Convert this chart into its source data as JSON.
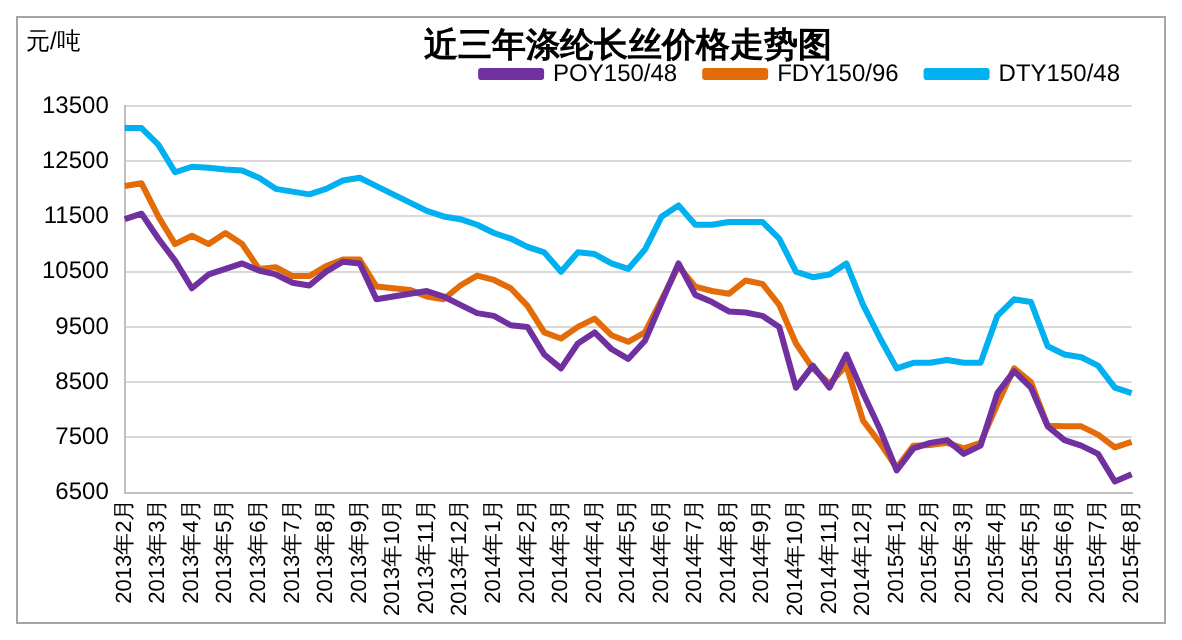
{
  "chart_data": {
    "type": "line",
    "title": "近三年涤纶长丝价格走势图",
    "ylabel": "元/吨",
    "categories": [
      "2013年2月",
      null,
      "2013年3月",
      null,
      "2013年4月",
      null,
      "2013年5月",
      null,
      "2013年6月",
      null,
      "2013年7月",
      null,
      "2013年8月",
      null,
      "2013年9月",
      null,
      "2013年10月",
      null,
      "2013年11月",
      null,
      "2013年12月",
      null,
      "2014年1月",
      null,
      "2014年2月",
      null,
      "2014年3月",
      null,
      "2014年4月",
      null,
      "2014年5月",
      null,
      "2014年6月",
      null,
      "2014年7月",
      null,
      "2014年8月",
      null,
      "2014年9月",
      null,
      "2014年10月",
      null,
      "2014年11月",
      null,
      "2014年12月",
      null,
      "2015年1月",
      null,
      "2015年2月",
      null,
      "2015年3月",
      null,
      "2015年4月",
      null,
      "2015年5月",
      null,
      "2015年6月",
      null,
      "2015年7月",
      null,
      "2015年8月"
    ],
    "series": [
      {
        "name": "POY150/48",
        "color": "#7030a0",
        "values": [
          11450,
          11550,
          11100,
          10700,
          10200,
          10450,
          10550,
          10650,
          10520,
          10450,
          10300,
          10250,
          10500,
          10680,
          10650,
          10000,
          10050,
          10100,
          10150,
          10050,
          9900,
          9750,
          9700,
          9530,
          9500,
          9000,
          8750,
          9200,
          9400,
          9100,
          8920,
          9250,
          9950,
          10650,
          10080,
          9950,
          9780,
          9760,
          9700,
          9500,
          8400,
          8800,
          8400,
          9000,
          8300,
          7650,
          6900,
          7300,
          7400,
          7450,
          7200,
          7350,
          8300,
          8700,
          8400,
          7700,
          7450,
          7350,
          7200,
          6700,
          6830
        ]
      },
      {
        "name": "FDY150/96",
        "color": "#e36c09",
        "values": [
          12050,
          12100,
          11500,
          11000,
          11150,
          11000,
          11200,
          11000,
          10550,
          10580,
          10420,
          10420,
          10600,
          10720,
          10720,
          10230,
          10200,
          10170,
          10050,
          10000,
          10250,
          10430,
          10350,
          10200,
          9880,
          9400,
          9290,
          9500,
          9650,
          9350,
          9230,
          9400,
          10000,
          10600,
          10230,
          10150,
          10100,
          10340,
          10280,
          9900,
          9200,
          8750,
          8470,
          8800,
          7800,
          7400,
          6950,
          7350,
          7360,
          7400,
          7300,
          7400,
          8100,
          8750,
          8500,
          7710,
          7700,
          7700,
          7550,
          7320,
          7420
        ]
      },
      {
        "name": "DTY150/48",
        "color": "#00b0f0",
        "values": [
          13100,
          13100,
          12800,
          12300,
          12400,
          12380,
          12350,
          12330,
          12200,
          12000,
          11950,
          11900,
          12000,
          12150,
          12200,
          12050,
          11900,
          11750,
          11600,
          11500,
          11450,
          11350,
          11200,
          11100,
          10950,
          10850,
          10500,
          10850,
          10820,
          10650,
          10550,
          10900,
          11500,
          11700,
          11350,
          11350,
          11400,
          11400,
          11400,
          11100,
          10500,
          10400,
          10450,
          10650,
          9900,
          9300,
          8750,
          8850,
          8850,
          8900,
          8850,
          8850,
          9700,
          10000,
          9950,
          9150,
          9000,
          8950,
          8800,
          8400,
          8300
        ]
      }
    ],
    "ylim": [
      6500,
      13500
    ],
    "yticks": [
      6500,
      7500,
      8500,
      9500,
      10500,
      11500,
      12500,
      13500
    ],
    "grid": "y",
    "legend": "top right",
    "marker": "none",
    "line_style": "solid"
  }
}
